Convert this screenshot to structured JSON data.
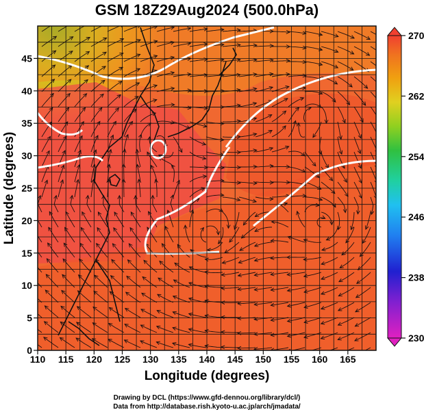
{
  "title": "GSM 18Z29Aug2024 (500.0hPa)",
  "xaxis": {
    "label": "Longitude (degrees)",
    "ticks": [
      "110",
      "115",
      "120",
      "125",
      "130",
      "135",
      "140",
      "145",
      "150",
      "155",
      "160",
      "165"
    ],
    "range": [
      110,
      170
    ]
  },
  "yaxis": {
    "label": "Latitude (degrees)",
    "ticks": [
      "0",
      "5",
      "10",
      "15",
      "20",
      "25",
      "30",
      "35",
      "40",
      "45"
    ],
    "range": [
      0,
      50
    ]
  },
  "colorbar": {
    "ticks": [
      "230",
      "238",
      "246",
      "254",
      "262",
      "270"
    ],
    "range": [
      230,
      270
    ],
    "colors": [
      "#e020c0",
      "#8020d0",
      "#2020d0",
      "#2080f0",
      "#20c0f0",
      "#20d0a0",
      "#30c040",
      "#90d020",
      "#e0d020",
      "#f0a010",
      "#f07020",
      "#f04030"
    ]
  },
  "credits": {
    "line1": "Drawing by DCL (https://www.gfd-dennou.org/library/dcl/)",
    "line2": "Data from http://database.rish.kyoto-u.ac.jp/arch/jmadata/"
  },
  "map": {
    "field": "temperature-like shading with streamlines",
    "highs": [
      {
        "lon": 159,
        "lat": 37
      },
      {
        "lon": 161,
        "lat": 19
      },
      {
        "lon": 140,
        "lat": 17
      },
      {
        "lon": 131,
        "lat": 33
      }
    ]
  }
}
